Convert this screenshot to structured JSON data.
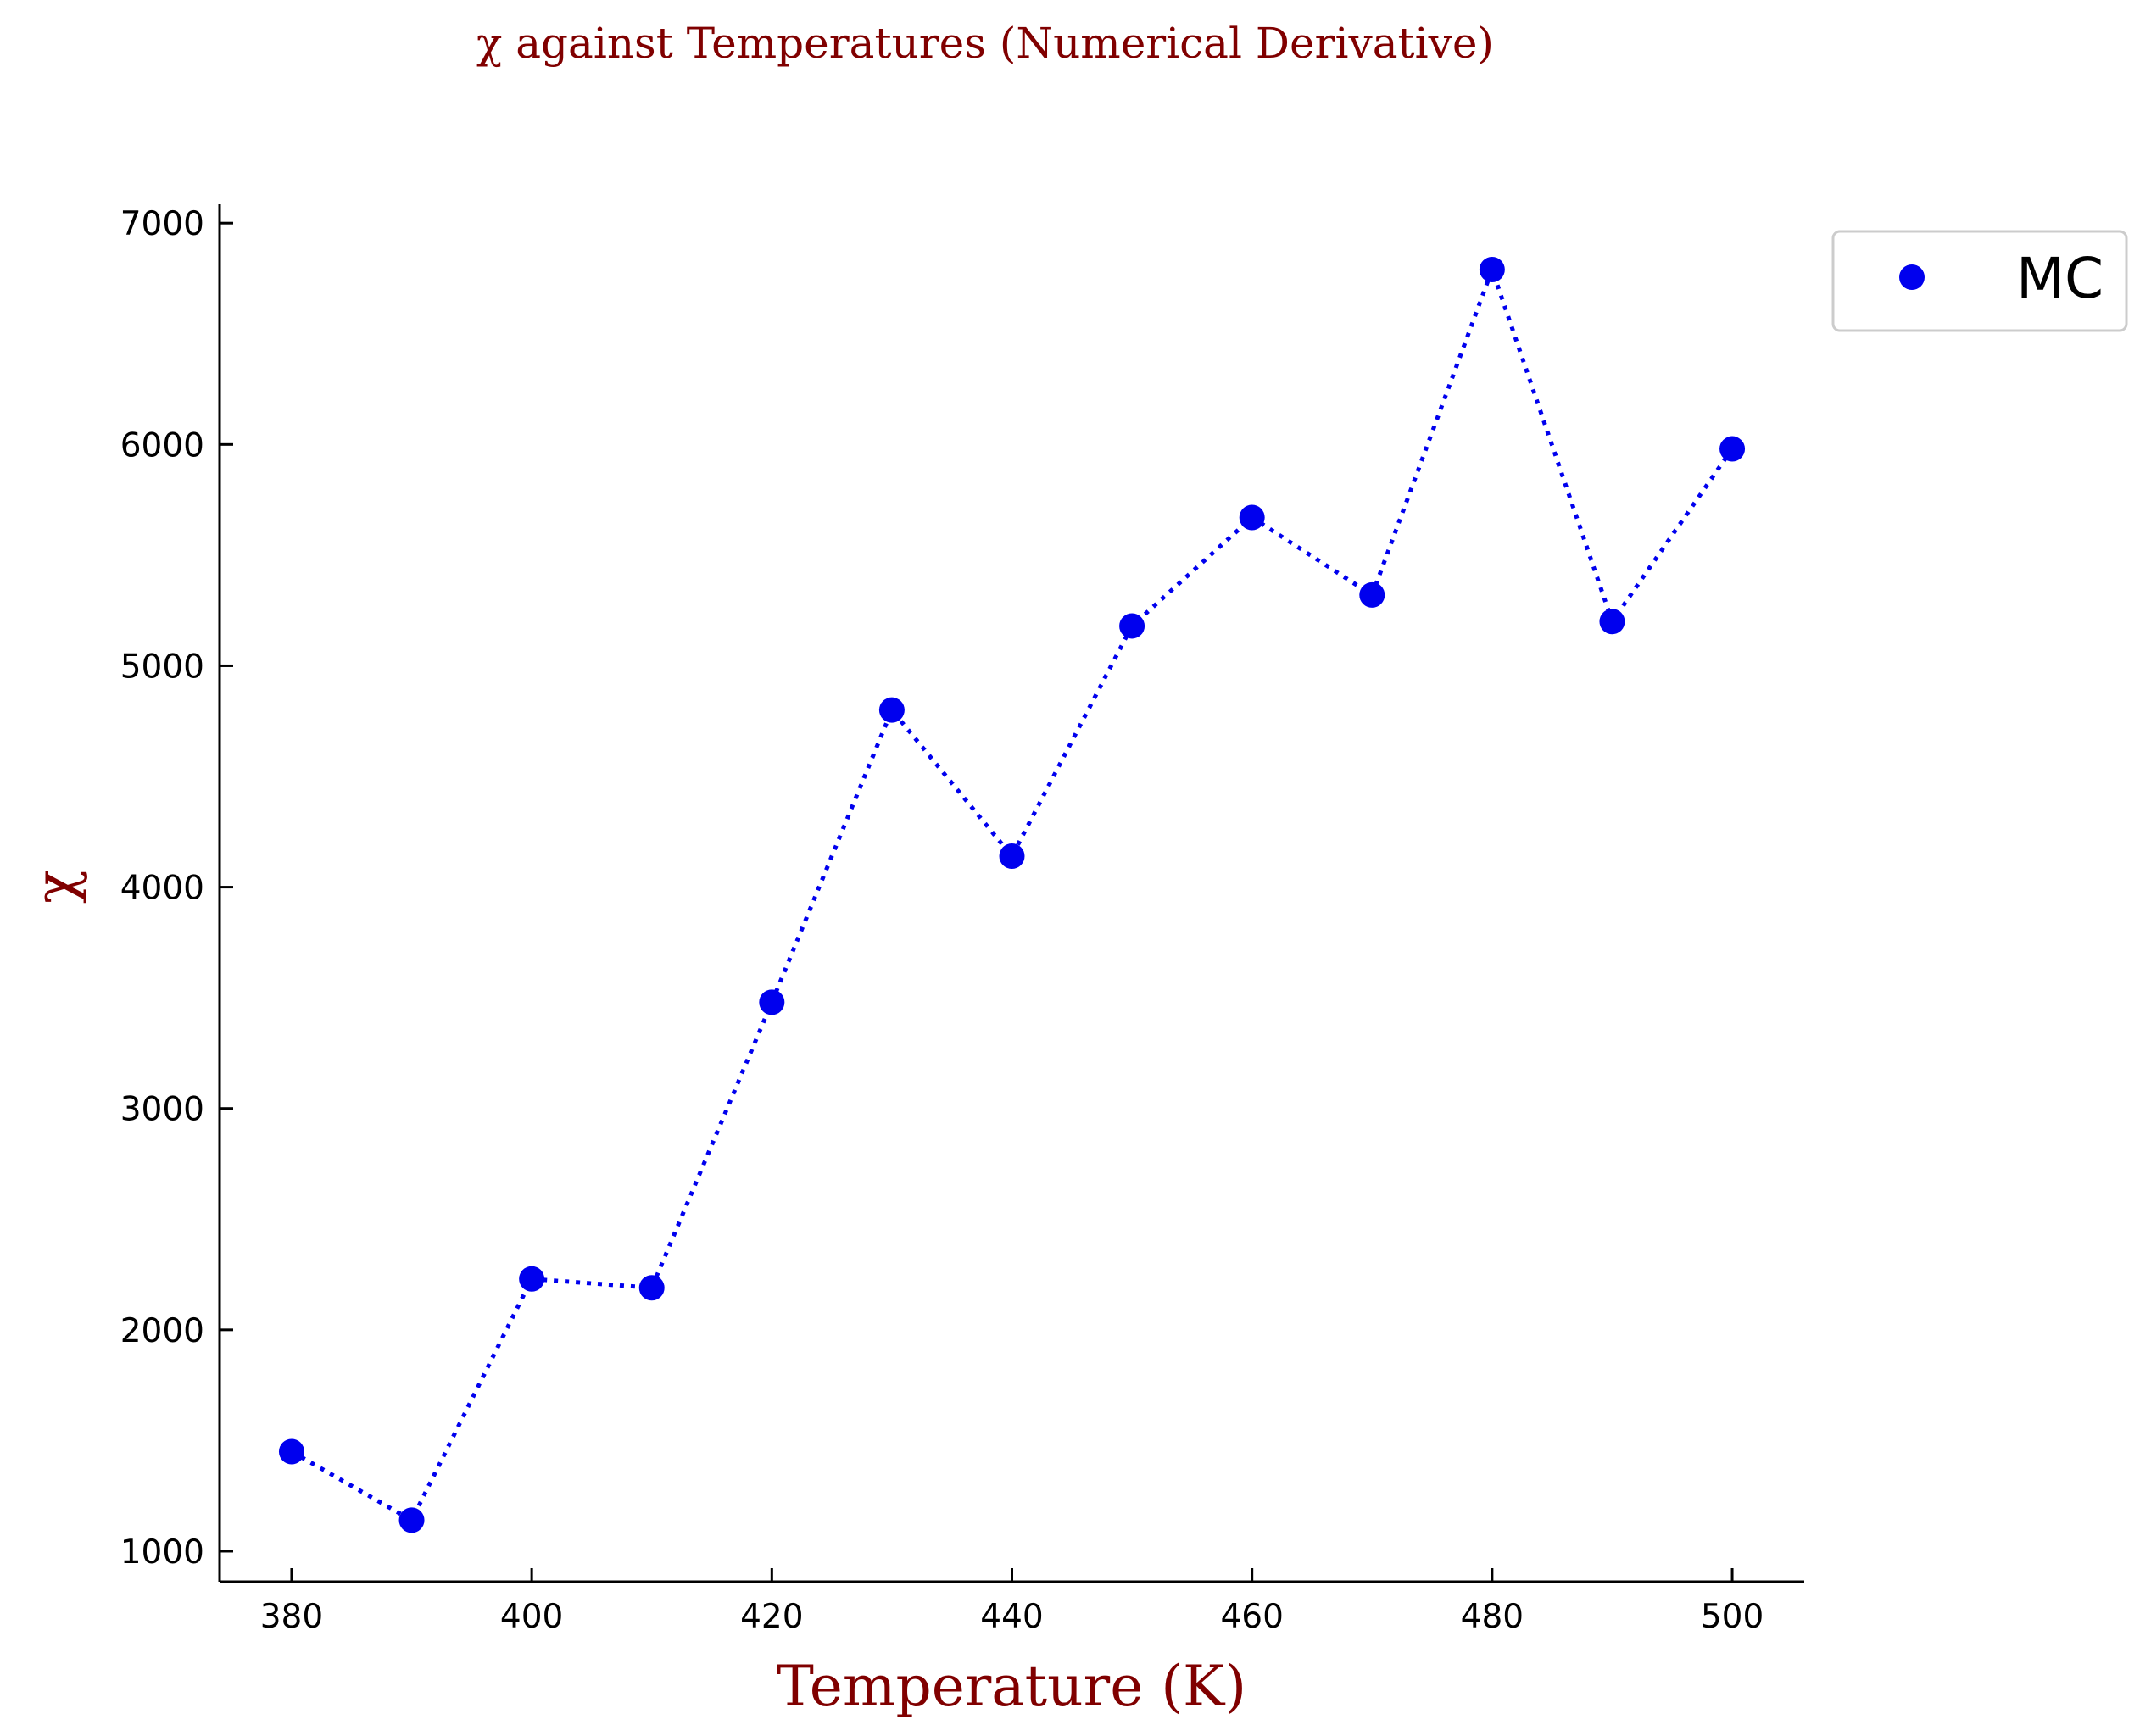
{
  "chart_data": {
    "type": "line",
    "title": "χ against Temperatures (Numerical Derivative)",
    "xlabel": "Temperature (K)",
    "ylabel": "χ",
    "xlim": [
      374,
      506
    ],
    "ylim": [
      862,
      7085
    ],
    "x_ticks": [
      380,
      400,
      420,
      440,
      460,
      480,
      500
    ],
    "y_ticks": [
      1000,
      2000,
      3000,
      4000,
      5000,
      6000,
      7000
    ],
    "grid": false,
    "legend_position": "outside-top-right",
    "line_style": "dotted",
    "colors": {
      "series": "#0000ee",
      "title": "#800000",
      "axis": "#000000"
    },
    "series": [
      {
        "name": "MC",
        "x": [
          380,
          390,
          400,
          410,
          420,
          430,
          440,
          450,
          460,
          470,
          480,
          490,
          500
        ],
        "y": [
          1450,
          1140,
          2230,
          2190,
          3480,
          4800,
          4140,
          5180,
          5670,
          5320,
          6790,
          5200,
          5980
        ]
      }
    ]
  }
}
